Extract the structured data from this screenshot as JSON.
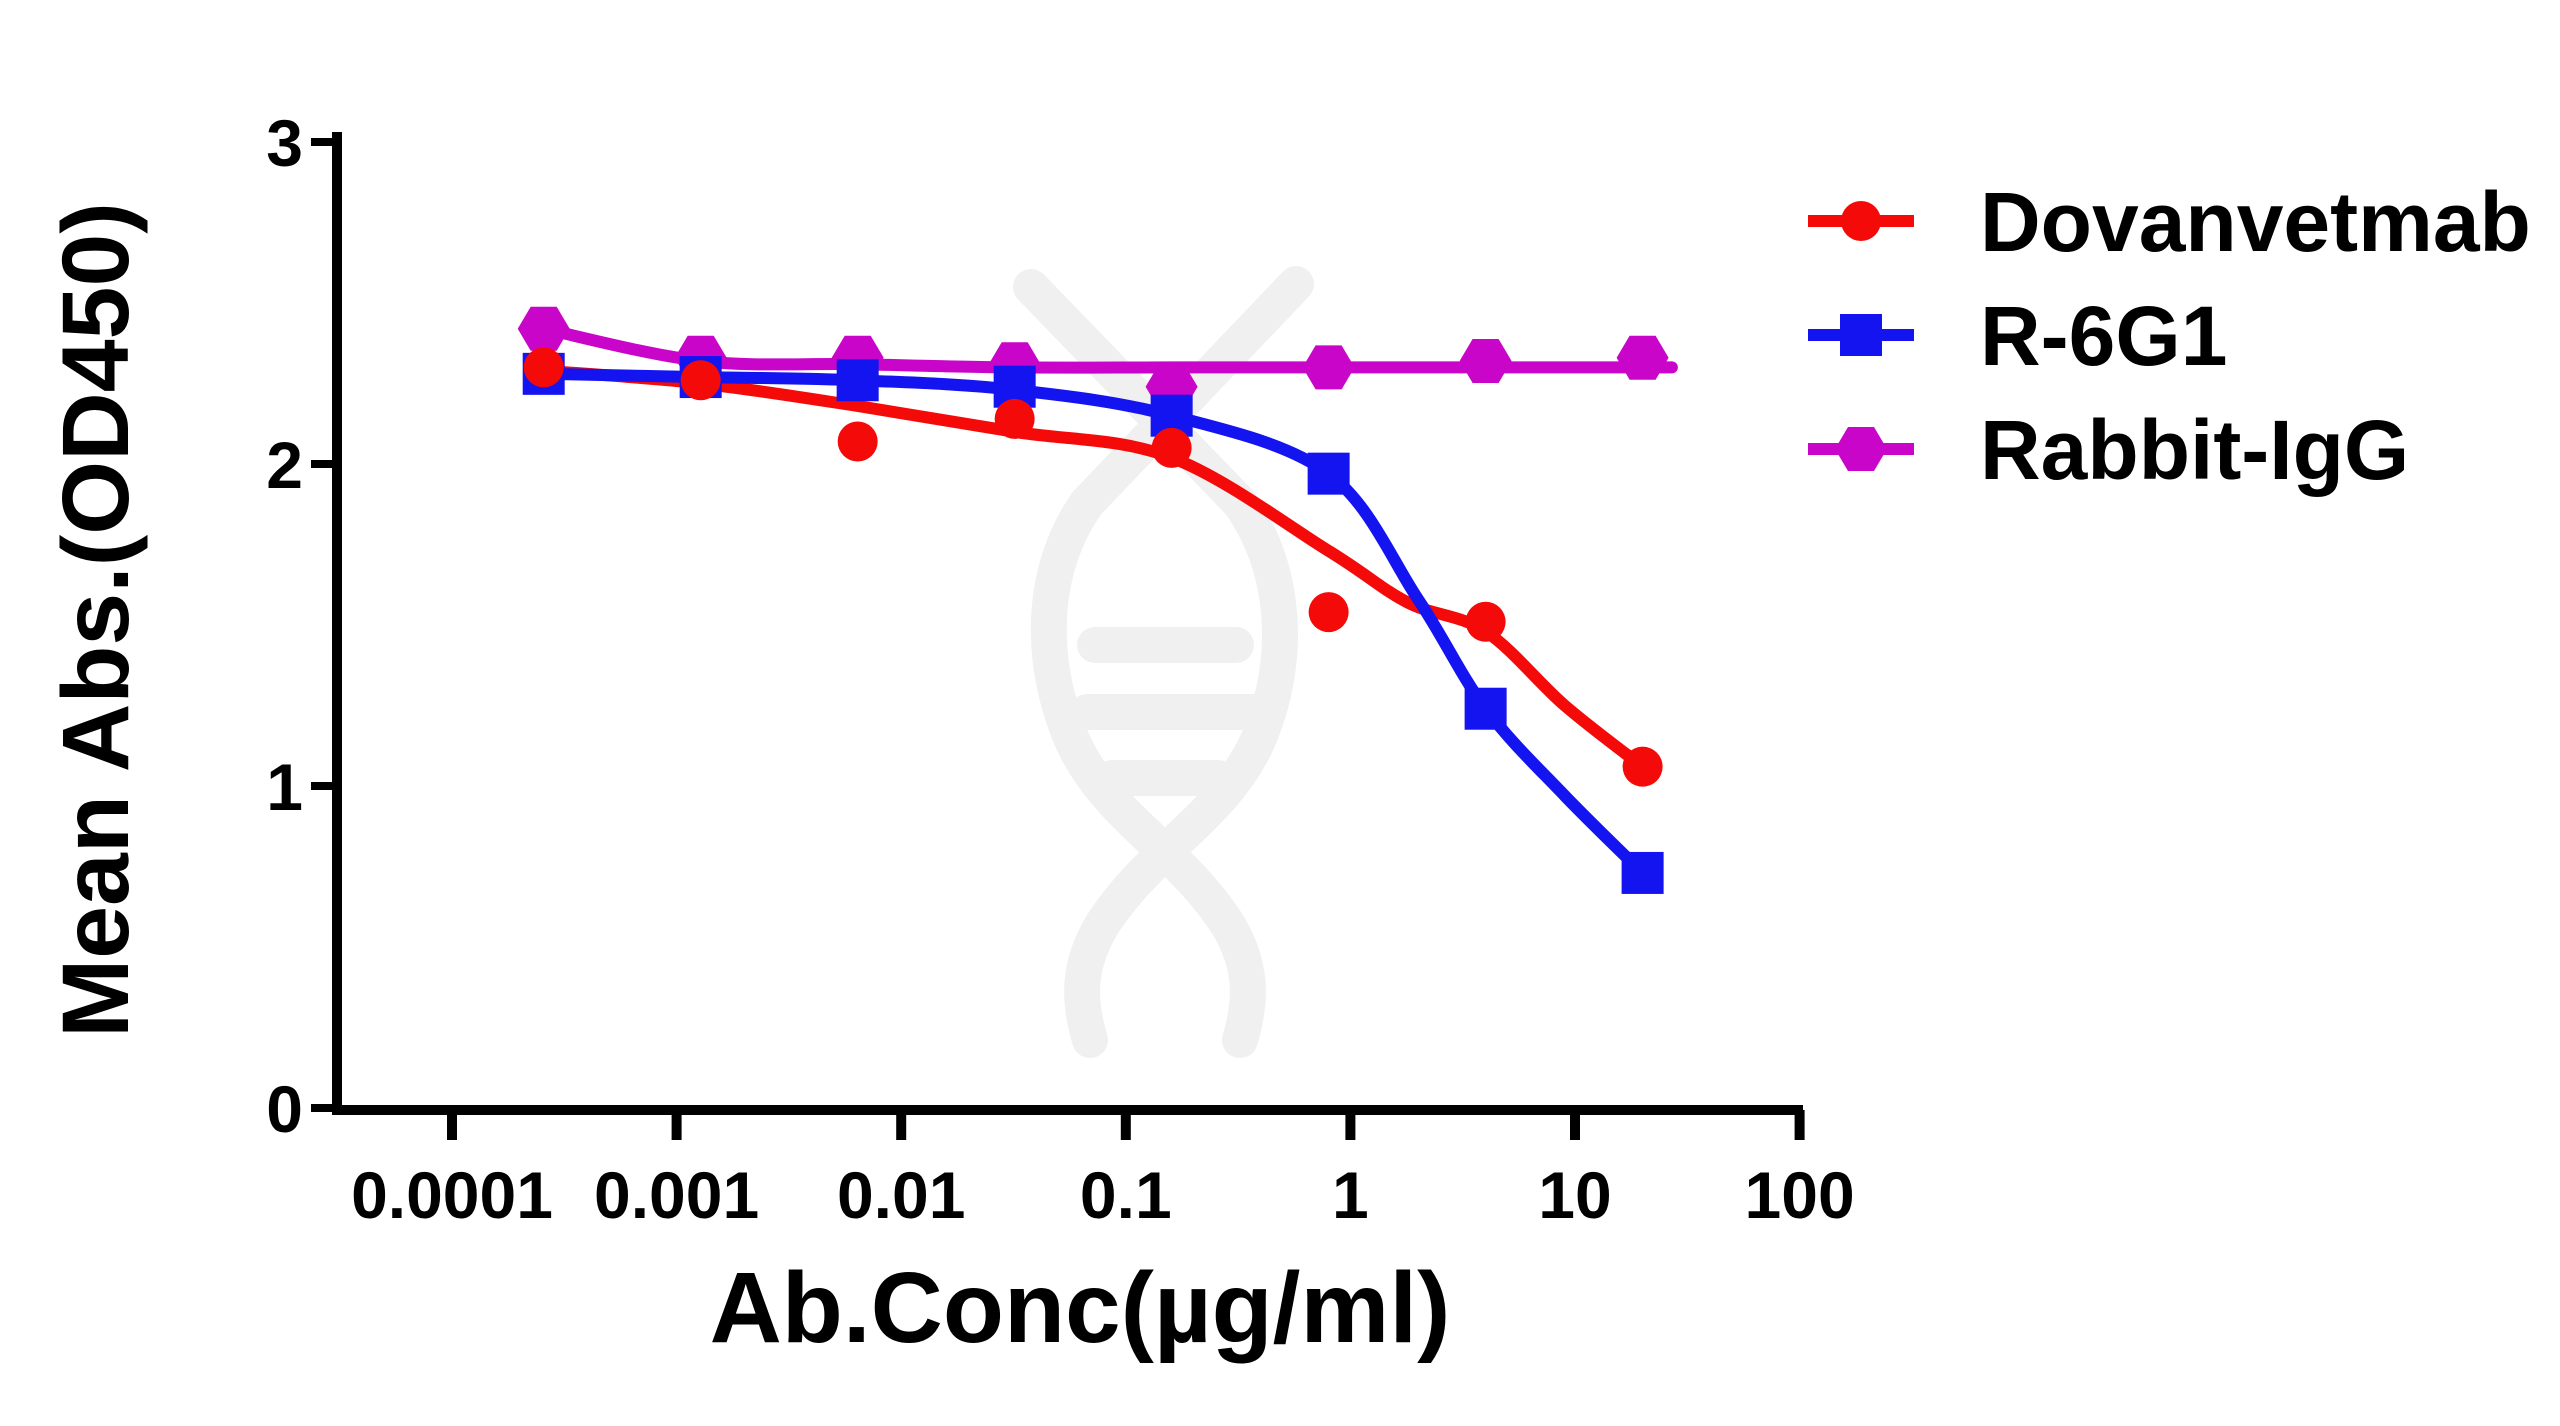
{
  "figure": {
    "background": "#ffffff",
    "watermark": "dna-helix-logo",
    "watermark_color": "#f0f0f0"
  },
  "axes": {
    "x": {
      "title": "Ab.Conc(µg/ml)",
      "scale": "log",
      "tick_labels": [
        "0.0001",
        "0.001",
        "0.01",
        "0.1",
        "1",
        "10",
        "100"
      ],
      "tick_values": [
        0.0001,
        0.001,
        0.01,
        0.1,
        1,
        10,
        100
      ]
    },
    "y": {
      "title": "Mean Abs.(OD450)",
      "tick_labels": [
        "0",
        "1",
        "2",
        "3"
      ],
      "tick_values": [
        0,
        1,
        2,
        3
      ]
    }
  },
  "legend": {
    "position": "right",
    "items": [
      {
        "label": "Dovanvetmab",
        "marker": "circle",
        "color": "#f50a0a"
      },
      {
        "label": "R-6G1",
        "marker": "square",
        "color": "#1414f0"
      },
      {
        "label": "Rabbit-IgG",
        "marker": "hexagon",
        "color": "#c805c8"
      }
    ]
  },
  "chart_data": {
    "type": "scatter",
    "title": "",
    "xlabel": "Ab.Conc(µg/ml)",
    "ylabel": "Mean Abs.(OD450)",
    "x_scale": "log",
    "xlim": [
      0.0001,
      100
    ],
    "ylim": [
      0,
      3
    ],
    "grid": false,
    "legend_position": "right",
    "x": [
      0.000256,
      0.00128,
      0.0064,
      0.032,
      0.16,
      0.8,
      4,
      20
    ],
    "series": [
      {
        "name": "Dovanvetmab",
        "color": "#f50a0a",
        "marker": "circle",
        "values": [
          2.3,
          2.26,
          2.07,
          2.14,
          2.05,
          1.54,
          1.51,
          1.06
        ],
        "fit_curve": {
          "x": [
            0.000256,
            0.00128,
            0.0064,
            0.032,
            0.16,
            0.8,
            1.8,
            4,
            9,
            20
          ],
          "y": [
            2.29,
            2.25,
            2.18,
            2.1,
            2.02,
            1.73,
            1.57,
            1.48,
            1.25,
            1.06
          ]
        }
      },
      {
        "name": "R-6G1",
        "color": "#1414f0",
        "marker": "square",
        "values": [
          2.28,
          2.27,
          2.26,
          2.24,
          2.15,
          1.97,
          1.24,
          0.73
        ],
        "fit_curve": {
          "x": [
            0.000256,
            0.00128,
            0.0064,
            0.032,
            0.16,
            0.8,
            2,
            4,
            9,
            20
          ],
          "y": [
            2.28,
            2.27,
            2.26,
            2.23,
            2.15,
            1.97,
            1.58,
            1.24,
            0.97,
            0.73
          ]
        }
      },
      {
        "name": "Rabbit-IgG",
        "color": "#c805c8",
        "marker": "hexagon",
        "values": [
          2.42,
          2.33,
          2.33,
          2.31,
          2.24,
          2.3,
          2.32,
          2.33
        ],
        "fit_curve": {
          "x": [
            0.000256,
            0.00128,
            0.0064,
            0.032,
            0.16,
            0.8,
            4,
            20,
            27
          ],
          "y": [
            2.42,
            2.32,
            2.31,
            2.3,
            2.3,
            2.3,
            2.3,
            2.3,
            2.3
          ]
        }
      }
    ]
  }
}
